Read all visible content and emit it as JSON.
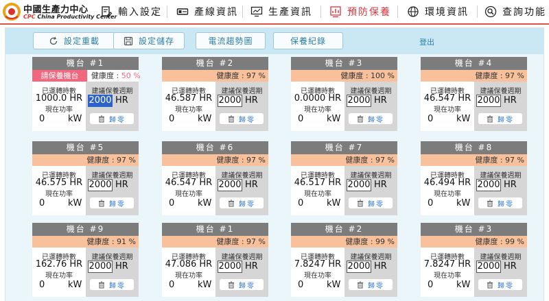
{
  "brand": {
    "name_cn": "中國生產力中心",
    "name_en": "China Productivity Center",
    "mark_text": "CPC"
  },
  "nav": [
    {
      "label": "輸入設定",
      "icon": "document-edit-icon",
      "active": false
    },
    {
      "label": "產線資訊",
      "icon": "production-line-icon",
      "active": false
    },
    {
      "label": "生產資訊",
      "icon": "monitor-chart-icon",
      "active": false
    },
    {
      "label": "預防保養",
      "icon": "maintenance-chart-icon",
      "active": true
    },
    {
      "label": "環境資訊",
      "icon": "globe-icon",
      "active": false
    },
    {
      "label": "查詢功能",
      "icon": "search-icon",
      "active": false
    }
  ],
  "colors": {
    "accent": "#e0343b",
    "card_header": "#7c7c7c",
    "health_bar": "#f8c19b",
    "alert": "#f1677e",
    "toolbar": "#c9e8f3"
  },
  "toolbar": {
    "reset_label": "設定重載",
    "save_label": "設定儲存",
    "trend_label": "電流趨勢圖",
    "record_label": "保養紀錄",
    "logout_label": "登出"
  },
  "card_labels": {
    "runtime_label": "已運轉時數",
    "period_label": "建議保養週期",
    "power_label": "現在功率",
    "health_label": "健康度 :",
    "unit_hr": "HR",
    "unit_kw": "kW",
    "zero_label": "歸零",
    "alert_label": "請保養機台"
  },
  "machines": [
    {
      "title": "機台 #1",
      "health": "50 %",
      "alert": true,
      "runtime": "1000.0",
      "period": "2000",
      "power": "0",
      "period_selected": true
    },
    {
      "title": "機台 #2",
      "health": "97 %",
      "alert": false,
      "runtime": "46.587",
      "period": "2000",
      "power": "0",
      "period_selected": false
    },
    {
      "title": "機台 #3",
      "health": "100 %",
      "alert": false,
      "runtime": "0.0000",
      "period": "2000",
      "power": "0",
      "period_selected": false
    },
    {
      "title": "機台 #4",
      "health": "97 %",
      "alert": false,
      "runtime": "46.547",
      "period": "2000",
      "power": "0",
      "period_selected": false
    },
    {
      "title": "機台 #5",
      "health": "97 %",
      "alert": false,
      "runtime": "46.575",
      "period": "2000",
      "power": "0",
      "period_selected": false
    },
    {
      "title": "機台 #6",
      "health": "97 %",
      "alert": false,
      "runtime": "46.547",
      "period": "2000",
      "power": "0",
      "period_selected": false
    },
    {
      "title": "機台 #7",
      "health": "97 %",
      "alert": false,
      "runtime": "46.517",
      "period": "2000",
      "power": "0",
      "period_selected": false
    },
    {
      "title": "機台 #8",
      "health": "97 %",
      "alert": false,
      "runtime": "46.494",
      "period": "2000",
      "power": "0",
      "period_selected": false
    },
    {
      "title": "機台 #9",
      "health": "91 %",
      "alert": false,
      "runtime": "162.76",
      "period": "2000",
      "power": "0",
      "period_selected": false
    },
    {
      "title": "機台 #1",
      "health": "97 %",
      "alert": false,
      "runtime": "47.086",
      "period": "2000",
      "power": "0",
      "period_selected": false
    },
    {
      "title": "機台 #2",
      "health": "99 %",
      "alert": false,
      "runtime": "7.8247",
      "period": "2000",
      "power": "0",
      "period_selected": false
    },
    {
      "title": "機台 #3",
      "health": "99 %",
      "alert": false,
      "runtime": "7.8247",
      "period": "2000",
      "power": "0",
      "period_selected": false
    }
  ]
}
